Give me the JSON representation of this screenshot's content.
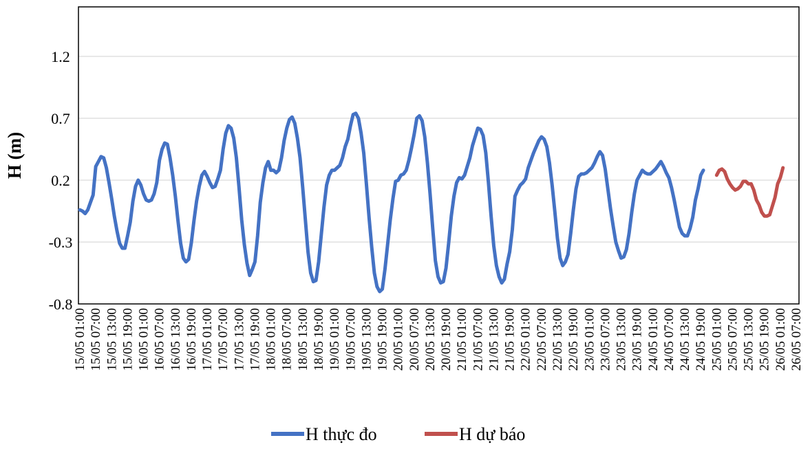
{
  "chart_data": {
    "type": "line",
    "title": "",
    "xlabel": "",
    "ylabel": "H (m)",
    "ylim": [
      -0.8,
      1.6
    ],
    "yticks": [
      "-0.8",
      "-0.3",
      "0.2",
      "0.7",
      "1.2"
    ],
    "ytick_values": [
      -0.8,
      -0.3,
      0.2,
      0.7,
      1.2
    ],
    "grid": true,
    "legend_position": "bottom",
    "x_start": "15/05 01:00",
    "x_step_hours": 1,
    "x_tick_labels": [
      "15/05 01:00",
      "15/05 07:00",
      "15/05 13:00",
      "15/05 19:00",
      "16/05 01:00",
      "16/05 07:00",
      "16/05 13:00",
      "16/05 19:00",
      "17/05 01:00",
      "17/05 07:00",
      "17/05 13:00",
      "17/05 19:00",
      "18/05 01:00",
      "18/05 07:00",
      "18/05 13:00",
      "18/05 19:00",
      "19/05 01:00",
      "19/05 07:00",
      "19/05 13:00",
      "19/05 19:00",
      "20/05 01:00",
      "20/05 07:00",
      "20/05 13:00",
      "20/05 19:00",
      "21/05 01:00",
      "21/05 07:00",
      "21/05 13:00",
      "21/05 19:00",
      "22/05 01:00",
      "22/05 07:00",
      "22/05 13:00",
      "22/05 19:00",
      "23/05 01:00",
      "23/05 07:00",
      "23/05 13:00",
      "23/05 19:00",
      "24/05 01:00",
      "24/05 07:00",
      "24/05 13:00",
      "24/05 19:00",
      "25/05 01:00",
      "25/05 07:00",
      "25/05 13:00",
      "25/05 19:00",
      "26/05 01:00",
      "26/05 07:00"
    ],
    "series": [
      {
        "name": "H thực đo",
        "color": "#4472C4",
        "x_start": "15/05 01:00",
        "values": [
          -0.04,
          -0.05,
          -0.07,
          -0.04,
          0.02,
          0.08,
          0.31,
          0.35,
          0.39,
          0.38,
          0.3,
          0.18,
          0.05,
          -0.09,
          -0.21,
          -0.31,
          -0.35,
          -0.35,
          -0.25,
          -0.14,
          0.03,
          0.15,
          0.2,
          0.16,
          0.09,
          0.04,
          0.03,
          0.04,
          0.09,
          0.18,
          0.36,
          0.45,
          0.5,
          0.49,
          0.38,
          0.24,
          0.07,
          -0.13,
          -0.31,
          -0.43,
          -0.46,
          -0.44,
          -0.31,
          -0.13,
          0.03,
          0.15,
          0.24,
          0.27,
          0.23,
          0.18,
          0.14,
          0.15,
          0.21,
          0.28,
          0.45,
          0.58,
          0.64,
          0.62,
          0.54,
          0.38,
          0.14,
          -0.12,
          -0.32,
          -0.47,
          -0.57,
          -0.52,
          -0.46,
          -0.25,
          0.02,
          0.18,
          0.3,
          0.35,
          0.28,
          0.28,
          0.26,
          0.28,
          0.38,
          0.52,
          0.62,
          0.69,
          0.71,
          0.66,
          0.54,
          0.38,
          0.14,
          -0.12,
          -0.38,
          -0.55,
          -0.62,
          -0.61,
          -0.46,
          -0.24,
          -0.02,
          0.16,
          0.24,
          0.28,
          0.28,
          0.3,
          0.32,
          0.38,
          0.47,
          0.53,
          0.64,
          0.73,
          0.74,
          0.7,
          0.58,
          0.42,
          0.17,
          -0.1,
          -0.34,
          -0.55,
          -0.66,
          -0.7,
          -0.68,
          -0.52,
          -0.32,
          -0.12,
          0.05,
          0.19,
          0.2,
          0.24,
          0.25,
          0.28,
          0.36,
          0.46,
          0.57,
          0.7,
          0.72,
          0.68,
          0.55,
          0.34,
          0.09,
          -0.19,
          -0.45,
          -0.58,
          -0.63,
          -0.62,
          -0.51,
          -0.31,
          -0.09,
          0.07,
          0.18,
          0.22,
          0.21,
          0.24,
          0.31,
          0.38,
          0.48,
          0.55,
          0.62,
          0.61,
          0.56,
          0.42,
          0.18,
          -0.09,
          -0.33,
          -0.49,
          -0.58,
          -0.63,
          -0.6,
          -0.48,
          -0.38,
          -0.2,
          0.07,
          0.12,
          0.16,
          0.18,
          0.21,
          0.3,
          0.36,
          0.42,
          0.47,
          0.52,
          0.55,
          0.53,
          0.47,
          0.34,
          0.16,
          -0.05,
          -0.27,
          -0.43,
          -0.49,
          -0.46,
          -0.4,
          -0.23,
          -0.04,
          0.13,
          0.23,
          0.25,
          0.25,
          0.26,
          0.28,
          0.3,
          0.34,
          0.39,
          0.43,
          0.4,
          0.29,
          0.13,
          -0.03,
          -0.17,
          -0.3,
          -0.37,
          -0.43,
          -0.42,
          -0.36,
          -0.23,
          -0.06,
          0.09,
          0.2,
          0.24,
          0.28,
          0.26,
          0.25,
          0.25,
          0.27,
          0.29,
          0.32,
          0.35,
          0.31,
          0.26,
          0.22,
          0.14,
          0.04,
          -0.07,
          -0.18,
          -0.23,
          -0.25,
          -0.25,
          -0.19,
          -0.1,
          0.04,
          0.13,
          0.24,
          0.28
        ]
      },
      {
        "name": "H dự báo",
        "color": "#C0504D",
        "x_start": "25/05 01:00",
        "values": [
          0.24,
          0.28,
          0.29,
          0.27,
          0.21,
          0.17,
          0.14,
          0.12,
          0.13,
          0.15,
          0.19,
          0.19,
          0.17,
          0.17,
          0.12,
          0.04,
          0.0,
          -0.06,
          -0.09,
          -0.09,
          -0.08,
          -0.01,
          0.06,
          0.17,
          0.22,
          0.3
        ]
      }
    ]
  }
}
